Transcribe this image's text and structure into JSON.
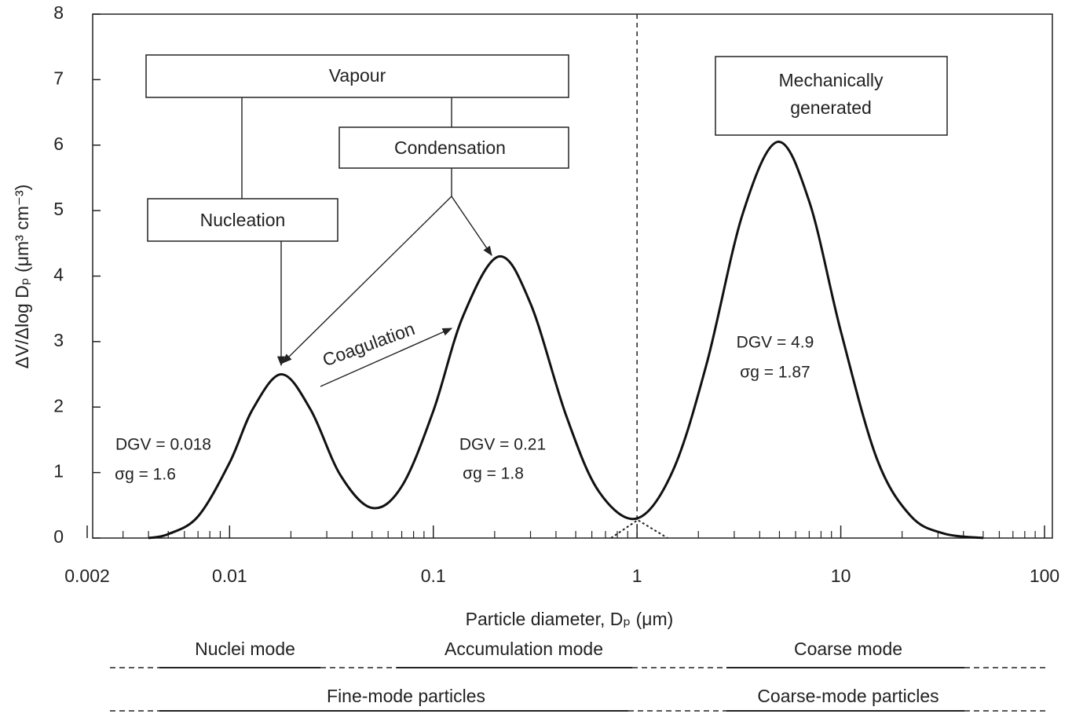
{
  "chart_data": {
    "type": "line",
    "x_label": "Particle diameter, Dₚ (μm)",
    "y_label": "ΔV/Δlog Dₚ (μm³ cm⁻³)",
    "x_scale": "log",
    "xlim": [
      0.002,
      100
    ],
    "xticks": [
      0.002,
      0.01,
      0.1,
      1,
      10,
      100
    ],
    "ylim": [
      0,
      8
    ],
    "yticks": [
      0,
      1,
      2,
      3,
      4,
      5,
      6,
      7,
      8
    ],
    "vline": 1,
    "series": [
      {
        "color": "#111111",
        "x": [
          0.004,
          0.005,
          0.007,
          0.01,
          0.013,
          0.018,
          0.025,
          0.035,
          0.05,
          0.07,
          0.1,
          0.14,
          0.21,
          0.3,
          0.45,
          0.65,
          1,
          1.5,
          2.2,
          3.3,
          4.9,
          7,
          10,
          15,
          22,
          32,
          50
        ],
        "values": [
          0,
          0.06,
          0.33,
          1.15,
          1.97,
          2.5,
          1.96,
          0.96,
          0.46,
          0.79,
          1.94,
          3.39,
          4.3,
          3.58,
          1.86,
          0.71,
          0.3,
          1.03,
          2.67,
          4.95,
          6.05,
          5.14,
          3.16,
          1.22,
          0.34,
          0.07,
          0
        ]
      }
    ],
    "annotations": {
      "vapour": "Vapour",
      "condensation": "Condensation",
      "nucleation": "Nucleation",
      "mechanical": [
        "Mechanically",
        "generated"
      ],
      "coagulation": "Coagulation"
    },
    "modes": [
      {
        "dgv": "DGV = 0.018",
        "sigma": "σg = 1.6"
      },
      {
        "dgv": "DGV = 0.21",
        "sigma": "σg = 1.8"
      },
      {
        "dgv": "DGV = 4.9",
        "sigma": "σg = 1.87"
      }
    ],
    "ranges": {
      "nuclei": "Nuclei mode",
      "accumulation": "Accumulation mode",
      "coarse": "Coarse mode",
      "fine_particles": "Fine-mode particles",
      "coarse_particles": "Coarse-mode particles"
    }
  }
}
